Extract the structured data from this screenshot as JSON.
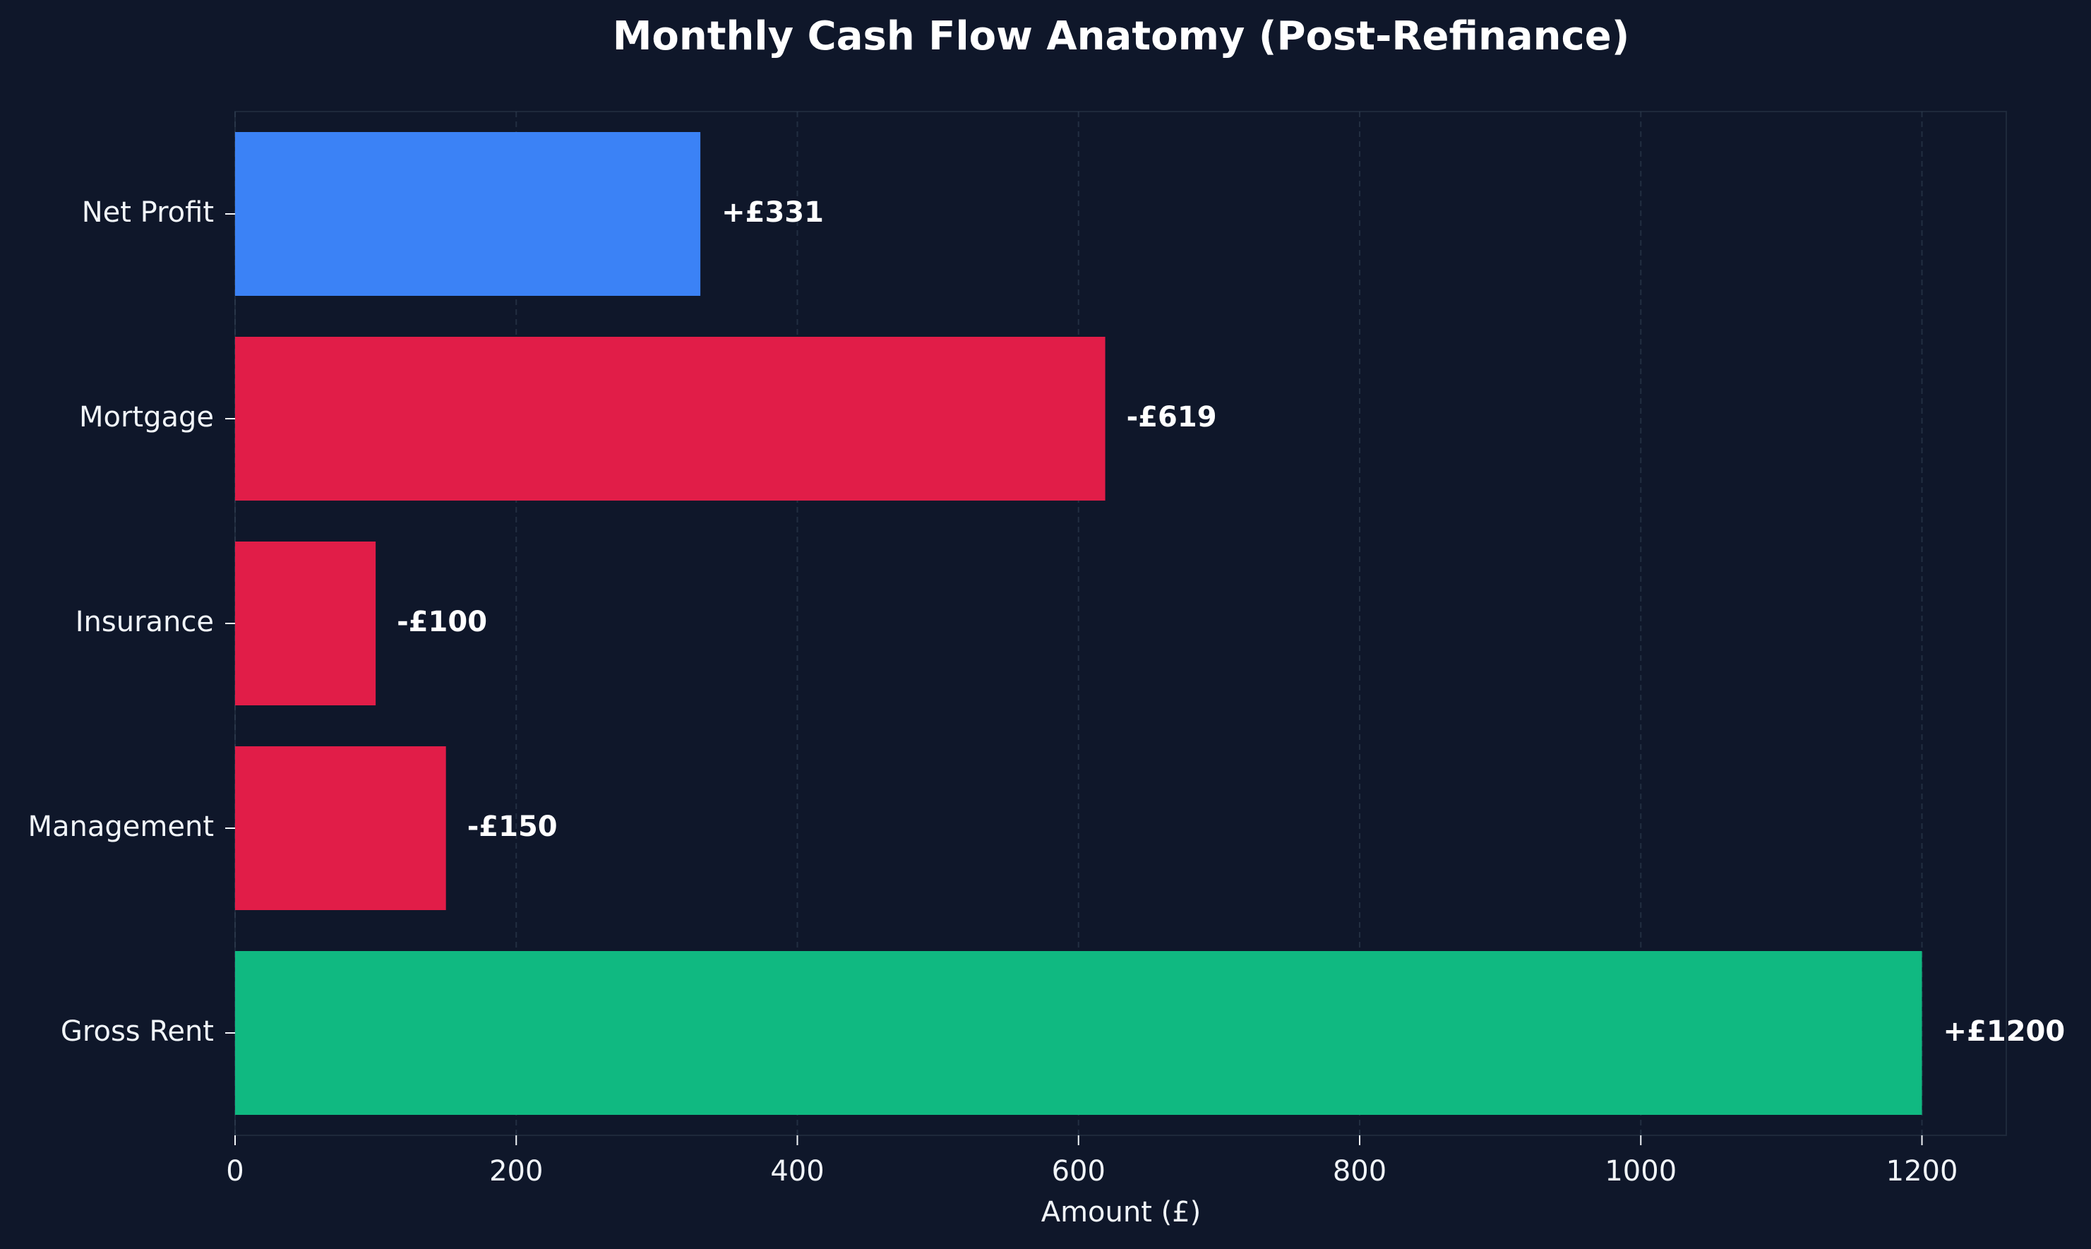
{
  "chart_data": {
    "type": "bar",
    "orientation": "horizontal",
    "title": "Monthly Cash Flow Anatomy (Post-Refinance)",
    "xlabel": "Amount (£)",
    "ylabel": "",
    "categories": [
      "Gross Rent",
      "Management",
      "Insurance",
      "Mortgage",
      "Net Profit"
    ],
    "values": [
      1200,
      150,
      100,
      619,
      331
    ],
    "data_labels": [
      "+£1200",
      "-£150",
      "-£100",
      "-£619",
      "+£331"
    ],
    "bar_colors": [
      "#10b981",
      "#e11d48",
      "#e11d48",
      "#e11d48",
      "#3b82f6"
    ],
    "xlim": [
      0,
      1260
    ],
    "xticks": [
      0,
      200,
      400,
      600,
      800,
      1000,
      1200
    ],
    "xtick_labels": [
      "0",
      "200",
      "400",
      "600",
      "800",
      "1000",
      "1200"
    ],
    "grid": "x-dashed",
    "legend": "none",
    "colors": {
      "background": "#0f172a",
      "text": "#f1f5f9",
      "grid": "#334155",
      "frame": "#1e293b",
      "income": "#10b981",
      "expense": "#e11d48",
      "profit": "#3b82f6"
    }
  }
}
